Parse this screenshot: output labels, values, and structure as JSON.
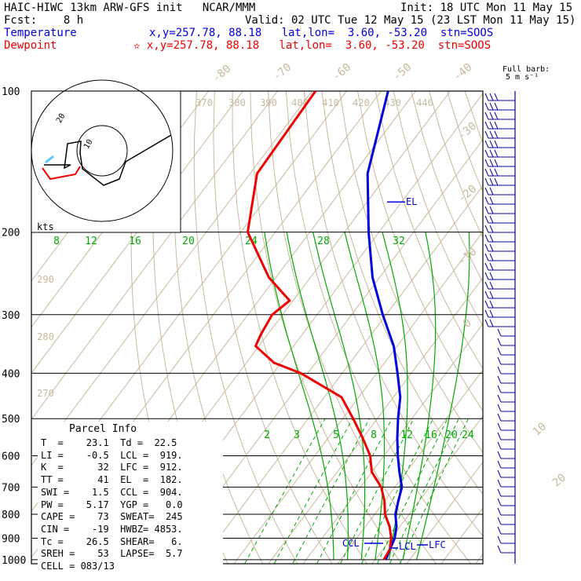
{
  "header": {
    "model": "HAIC-HIWC 13km ARW-GFS init   NCAR/MMM",
    "init": "Init: 18 UTC Mon 11 May 15",
    "fcst": "Fcst:    8 h",
    "valid": "Valid: 02 UTC Tue 12 May 15 (23 LST Mon 11 May 15)",
    "temp_label": "Temperature",
    "temp_info": "x,y=257.78, 88.18   lat,lon=  3.60, -53.20  stn=SOOS",
    "dew_label": "Dewpoint",
    "dew_info": "✫ x,y=257.78, 88.18   lat,lon=  3.60, -53.20  stn=SOOS",
    "barb_label": "Full barb:",
    "barb_unit": "5 m s⁻¹"
  },
  "colors": {
    "temperature": "#0000dd",
    "dewpoint": "#ee0000",
    "mixing": "#00aa00",
    "dry": "#c8b89a",
    "hodo_wind": "#5bc8ff",
    "barb": "#0000aa"
  },
  "chart_data": {
    "type": "line",
    "title": "",
    "pressure_levels": [
      "100",
      "200",
      "300",
      "400",
      "500",
      "600",
      "700",
      "800",
      "900",
      "1000"
    ],
    "temp_labels": [
      "-80",
      "-70",
      "-60",
      "-50",
      "-40",
      "-30",
      "-20",
      "-10",
      "0",
      "10",
      "20",
      "30",
      "40"
    ],
    "theta_labels": [
      "370",
      "380",
      "390",
      "400",
      "410",
      "420",
      "430",
      "440",
      "290",
      "280",
      "270"
    ],
    "mixing_labels_upper": [
      "8",
      "12",
      "16",
      "20",
      "24",
      "28",
      "32"
    ],
    "mixing_labels_lower": [
      "2",
      "3",
      "5",
      "8",
      "12",
      "16",
      "20",
      "24"
    ],
    "series": [
      {
        "name": "Temperature",
        "points": [
          [
            100,
            -78
          ],
          [
            150,
            -66
          ],
          [
            200,
            -53
          ],
          [
            250,
            -42
          ],
          [
            300,
            -31
          ],
          [
            350,
            -21
          ],
          [
            400,
            -14
          ],
          [
            450,
            -8
          ],
          [
            500,
            -4
          ],
          [
            550,
            0
          ],
          [
            600,
            4
          ],
          [
            650,
            8
          ],
          [
            700,
            12
          ],
          [
            750,
            14
          ],
          [
            800,
            16
          ],
          [
            850,
            19
          ],
          [
            900,
            21
          ],
          [
            950,
            22
          ],
          [
            1000,
            23.1
          ]
        ]
      },
      {
        "name": "Dewpoint",
        "points": [
          [
            100,
            -99
          ],
          [
            150,
            -98
          ],
          [
            200,
            -88
          ],
          [
            250,
            -72
          ],
          [
            280,
            -61
          ],
          [
            300,
            -63
          ],
          [
            330,
            -62
          ],
          [
            350,
            -61
          ],
          [
            380,
            -52
          ],
          [
            400,
            -42
          ],
          [
            450,
            -25
          ],
          [
            500,
            -17
          ],
          [
            550,
            -10
          ],
          [
            600,
            -4
          ],
          [
            650,
            0
          ],
          [
            700,
            6
          ],
          [
            750,
            10
          ],
          [
            800,
            13
          ],
          [
            850,
            17
          ],
          [
            900,
            20
          ],
          [
            950,
            22
          ],
          [
            1000,
            22.5
          ]
        ]
      }
    ],
    "annotations": [
      "EL",
      "CCL",
      "LCL",
      "LFC"
    ],
    "hodograph": {
      "ring_labels": [
        "10",
        "20"
      ],
      "units": "kts"
    }
  },
  "parcel_info": {
    "title": "Parcel Info",
    "rows": [
      "T  =    23.1  Td =  22.5",
      "LI =    -0.5  LCL =  919.",
      "K  =      32  LFC =  912.",
      "TT =      41  EL  =  182.",
      "SWI =    1.5  CCL =  904.",
      "PW =    5.17  YGP =   0.0",
      "CAPE =    73  SWEAT=  245",
      "CIN =    -19  HWBZ= 4853.",
      "Tc =    26.5  SHEAR=   6.",
      "SREH =    53  LAPSE=  5.7",
      "CELL = 083/13"
    ]
  }
}
